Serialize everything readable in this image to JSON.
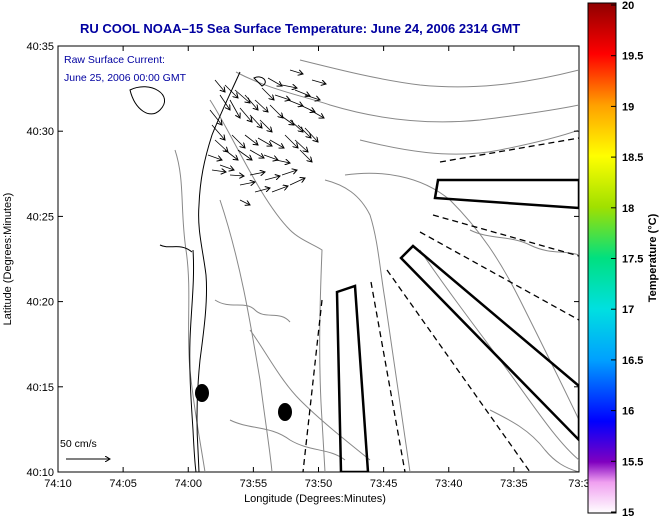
{
  "chart_data": {
    "type": "map",
    "title": "RU COOL  NOAA–15  Sea Surface Temperature:  June 24, 2006 2314 GMT",
    "xlabel": "Longitude (Degrees:Minutes)",
    "ylabel": "Latitude (Degrees:Minutes)",
    "annotation": [
      "Raw Surface Current:",
      "June 25, 2006 00:00 GMT"
    ],
    "scale_label": "50 cm/s",
    "x_ticks": [
      "74:10",
      "74:05",
      "74:00",
      "73:55",
      "73:50",
      "73:45",
      "73:40",
      "73:35",
      "73:3"
    ],
    "y_ticks": [
      "40:35",
      "40:30",
      "40:25",
      "40:20",
      "40:15",
      "40:10"
    ],
    "colorbar": {
      "label": "Temperature (°C)",
      "ticks": [
        "20",
        "19.5",
        "19",
        "18.5",
        "18",
        "17.5",
        "17",
        "16.5",
        "16",
        "15.5",
        "15"
      ],
      "range": [
        15,
        20
      ]
    },
    "colors": {
      "title": "#0000a0",
      "annotation": "#0000a0",
      "axes": "#000000",
      "land_contour": "#000000",
      "bathymetry": "#888888"
    }
  }
}
